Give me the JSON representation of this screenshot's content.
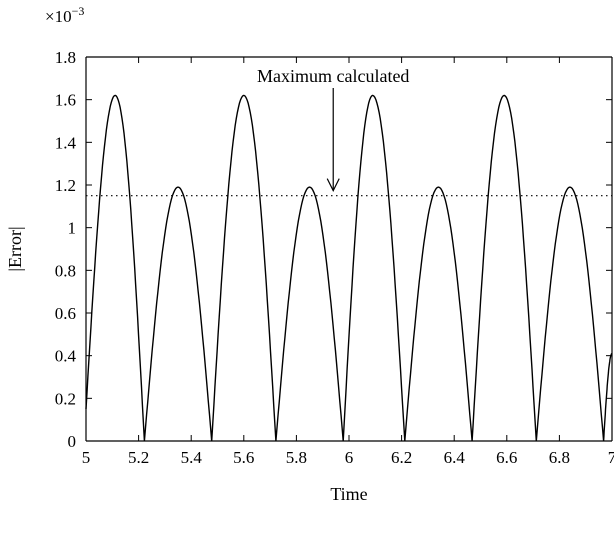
{
  "chart_data": {
    "type": "line",
    "title": "",
    "xlabel": "Time",
    "ylabel": "|Error|",
    "xlim": [
      5,
      7
    ],
    "ylim": [
      0,
      1.8
    ],
    "x_ticks": [
      "5",
      "5.2",
      "5.4",
      "5.6",
      "5.8",
      "6",
      "6.2",
      "6.4",
      "6.6",
      "6.8",
      "7"
    ],
    "y_ticks": [
      "0",
      "0.2",
      "0.4",
      "0.6",
      "0.8",
      "1",
      "1.2",
      "1.4",
      "1.6",
      "1.8"
    ],
    "y_multiplier_base": "×10",
    "y_multiplier_exponent": "−3",
    "grid": false,
    "series": [
      {
        "x": [
          5.0,
          5.111,
          5.222,
          5.35,
          5.478,
          5.6,
          5.722,
          5.85,
          5.978,
          6.09,
          6.212,
          6.34,
          6.468,
          6.59,
          6.712,
          6.84,
          6.968,
          7.0
        ],
        "y": [
          0.15,
          1.62,
          0.0,
          1.19,
          0.0,
          1.62,
          0.0,
          1.19,
          0.0,
          1.62,
          0.0,
          1.19,
          0.0,
          1.62,
          0.0,
          1.19,
          0.0,
          0.41
        ]
      }
    ],
    "reference_line": {
      "y": 1.15,
      "style": "dotted"
    },
    "annotation": {
      "text": "Maximum calculated",
      "x": 5.94,
      "y": 1.15
    }
  }
}
